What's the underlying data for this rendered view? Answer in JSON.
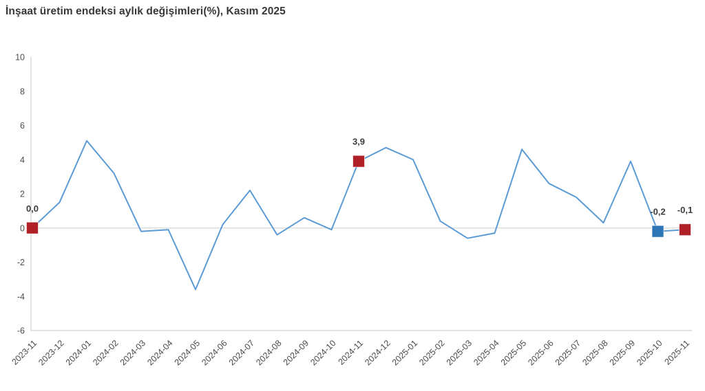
{
  "title": "İnşaat üretim endeksi aylık değişimleri(%), Kasım 2025",
  "chart_data": {
    "type": "line",
    "title": "İnşaat üretim endeksi aylık değişimleri(%), Kasım 2025",
    "categories": [
      "2023-11",
      "2023-12",
      "2024-01",
      "2024-02",
      "2024-03",
      "2024-04",
      "2024-05",
      "2024-06",
      "2024-07",
      "2024-08",
      "2024-09",
      "2024-10",
      "2024-11",
      "2024-12",
      "2025-01",
      "2025-02",
      "2025-03",
      "2025-04",
      "2025-05",
      "2025-06",
      "2025-07",
      "2025-08",
      "2025-09",
      "2025-10",
      "2025-11"
    ],
    "values": [
      0.0,
      1.5,
      5.1,
      3.2,
      -0.2,
      -0.1,
      -3.6,
      0.2,
      2.2,
      -0.4,
      0.6,
      -0.1,
      3.9,
      4.7,
      4.0,
      0.4,
      -0.6,
      -0.3,
      4.6,
      2.6,
      1.8,
      0.3,
      3.9,
      -0.2,
      -0.1
    ],
    "xlabel": "",
    "ylabel": "",
    "ylim": [
      -6,
      10
    ],
    "yticks": [
      10,
      8,
      6,
      4,
      2,
      0,
      -2,
      -4,
      -6
    ],
    "grid": "zero-line-only",
    "legend": "none",
    "line_color": "#5b9bd5",
    "axis_color": "#cfcfcf",
    "zero_line_color": "#dedede",
    "annotations": [
      {
        "index": 0,
        "category": "2023-11",
        "label": "0,0",
        "marker_color": "#b02127"
      },
      {
        "index": 12,
        "category": "2024-11",
        "label": "3,9",
        "marker_color": "#b02127"
      },
      {
        "index": 23,
        "category": "2025-10",
        "label": "-0,2",
        "marker_color": "#2e75b6"
      },
      {
        "index": 24,
        "category": "2025-11",
        "label": "-0,1",
        "marker_color": "#b02127"
      }
    ]
  }
}
